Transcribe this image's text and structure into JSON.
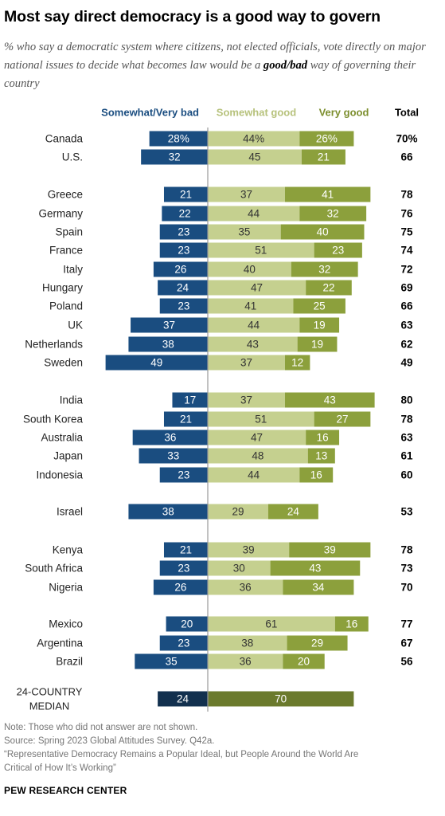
{
  "title": "Most say direct democracy is a good way to govern",
  "subtitle": {
    "part1": "% who say a democratic system where citizens, not elected officials, vote directly on major national issues to decide what becomes law would be a ",
    "emph": "good/bad",
    "part2": " way of governing their country"
  },
  "colors": {
    "bad": "#1a4d80",
    "median_bad": "#12304e",
    "somewhat_good": "#c5d08f",
    "very_good": "#8ca03c",
    "median_good": "#6b7a2d",
    "bad_label": "#1a4d80",
    "somewhat_good_label": "#b7c27c",
    "very_good_label": "#7d8f2f",
    "axis": "#999999"
  },
  "chart_data": {
    "type": "bar",
    "orientation": "horizontal",
    "stacked": "diverging",
    "headers": {
      "bad": "Somewhat/Very bad",
      "somewhat_good": "Somewhat good",
      "very_good": "Very good",
      "total": "Total"
    },
    "rows": [
      {
        "country": "Canada",
        "bad": 28,
        "somewhat_good": 44,
        "very_good": 26,
        "total": 70,
        "bad_label": "28%",
        "sg_label": "44%",
        "vg_label": "26%",
        "total_label": "70%"
      },
      {
        "country": "U.S.",
        "bad": 32,
        "somewhat_good": 45,
        "very_good": 21,
        "total": 66,
        "bad_label": "32",
        "sg_label": "45",
        "vg_label": "21",
        "total_label": "66"
      },
      {
        "country": "Greece",
        "bad": 21,
        "somewhat_good": 37,
        "very_good": 41,
        "total": 78,
        "bad_label": "21",
        "sg_label": "37",
        "vg_label": "41",
        "total_label": "78"
      },
      {
        "country": "Germany",
        "bad": 22,
        "somewhat_good": 44,
        "very_good": 32,
        "total": 76,
        "bad_label": "22",
        "sg_label": "44",
        "vg_label": "32",
        "total_label": "76"
      },
      {
        "country": "Spain",
        "bad": 23,
        "somewhat_good": 35,
        "very_good": 40,
        "total": 75,
        "bad_label": "23",
        "sg_label": "35",
        "vg_label": "40",
        "total_label": "75"
      },
      {
        "country": "France",
        "bad": 23,
        "somewhat_good": 51,
        "very_good": 23,
        "total": 74,
        "bad_label": "23",
        "sg_label": "51",
        "vg_label": "23",
        "total_label": "74"
      },
      {
        "country": "Italy",
        "bad": 26,
        "somewhat_good": 40,
        "very_good": 32,
        "total": 72,
        "bad_label": "26",
        "sg_label": "40",
        "vg_label": "32",
        "total_label": "72"
      },
      {
        "country": "Hungary",
        "bad": 24,
        "somewhat_good": 47,
        "very_good": 22,
        "total": 69,
        "bad_label": "24",
        "sg_label": "47",
        "vg_label": "22",
        "total_label": "69"
      },
      {
        "country": "Poland",
        "bad": 23,
        "somewhat_good": 41,
        "very_good": 25,
        "total": 66,
        "bad_label": "23",
        "sg_label": "41",
        "vg_label": "25",
        "total_label": "66"
      },
      {
        "country": "UK",
        "bad": 37,
        "somewhat_good": 44,
        "very_good": 19,
        "total": 63,
        "bad_label": "37",
        "sg_label": "44",
        "vg_label": "19",
        "total_label": "63"
      },
      {
        "country": "Netherlands",
        "bad": 38,
        "somewhat_good": 43,
        "very_good": 19,
        "total": 62,
        "bad_label": "38",
        "sg_label": "43",
        "vg_label": "19",
        "total_label": "62"
      },
      {
        "country": "Sweden",
        "bad": 49,
        "somewhat_good": 37,
        "very_good": 12,
        "total": 49,
        "bad_label": "49",
        "sg_label": "37",
        "vg_label": "12",
        "total_label": "49"
      },
      {
        "country": "India",
        "bad": 17,
        "somewhat_good": 37,
        "very_good": 43,
        "total": 80,
        "bad_label": "17",
        "sg_label": "37",
        "vg_label": "43",
        "total_label": "80"
      },
      {
        "country": "South Korea",
        "bad": 21,
        "somewhat_good": 51,
        "very_good": 27,
        "total": 78,
        "bad_label": "21",
        "sg_label": "51",
        "vg_label": "27",
        "total_label": "78"
      },
      {
        "country": "Australia",
        "bad": 36,
        "somewhat_good": 47,
        "very_good": 16,
        "total": 63,
        "bad_label": "36",
        "sg_label": "47",
        "vg_label": "16",
        "total_label": "63"
      },
      {
        "country": "Japan",
        "bad": 33,
        "somewhat_good": 48,
        "very_good": 13,
        "total": 61,
        "bad_label": "33",
        "sg_label": "48",
        "vg_label": "13",
        "total_label": "61"
      },
      {
        "country": "Indonesia",
        "bad": 23,
        "somewhat_good": 44,
        "very_good": 16,
        "total": 60,
        "bad_label": "23",
        "sg_label": "44",
        "vg_label": "16",
        "total_label": "60"
      },
      {
        "country": "Israel",
        "bad": 38,
        "somewhat_good": 29,
        "very_good": 24,
        "total": 53,
        "bad_label": "38",
        "sg_label": "29",
        "vg_label": "24",
        "total_label": "53"
      },
      {
        "country": "Kenya",
        "bad": 21,
        "somewhat_good": 39,
        "very_good": 39,
        "total": 78,
        "bad_label": "21",
        "sg_label": "39",
        "vg_label": "39",
        "total_label": "78"
      },
      {
        "country": "South Africa",
        "bad": 23,
        "somewhat_good": 30,
        "very_good": 43,
        "total": 73,
        "bad_label": "23",
        "sg_label": "30",
        "vg_label": "43",
        "total_label": "73"
      },
      {
        "country": "Nigeria",
        "bad": 26,
        "somewhat_good": 36,
        "very_good": 34,
        "total": 70,
        "bad_label": "26",
        "sg_label": "36",
        "vg_label": "34",
        "total_label": "70"
      },
      {
        "country": "Mexico",
        "bad": 20,
        "somewhat_good": 61,
        "very_good": 16,
        "total": 77,
        "bad_label": "20",
        "sg_label": "61",
        "vg_label": "16",
        "total_label": "77"
      },
      {
        "country": "Argentina",
        "bad": 23,
        "somewhat_good": 38,
        "very_good": 29,
        "total": 67,
        "bad_label": "23",
        "sg_label": "38",
        "vg_label": "29",
        "total_label": "67"
      },
      {
        "country": "Brazil",
        "bad": 35,
        "somewhat_good": 36,
        "very_good": 20,
        "total": 56,
        "bad_label": "35",
        "sg_label": "36",
        "vg_label": "20",
        "total_label": "56"
      }
    ],
    "median": {
      "label_lines": [
        "24-COUNTRY",
        "MEDIAN"
      ],
      "bad": 24,
      "good": 70,
      "bad_label": "24",
      "good_label": "70"
    }
  },
  "notes": [
    "Note: Those who did not answer are not shown.",
    "Source: Spring 2023 Global Attitudes Survey. Q42a.",
    "“Representative Democracy Remains a Popular Ideal, but People Around the World Are",
    "Critical of How It’s Working”"
  ],
  "source_org": "PEW RESEARCH CENTER"
}
